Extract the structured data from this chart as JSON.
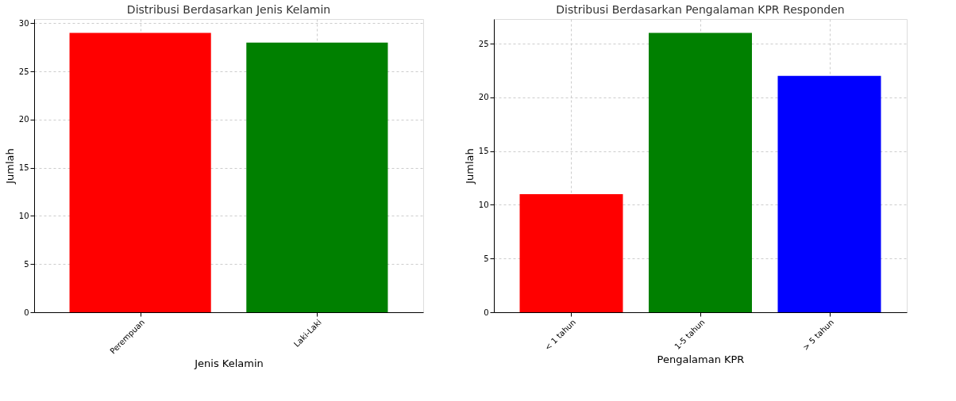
{
  "chart_data": [
    {
      "type": "bar",
      "title": "Distribusi Berdasarkan Jenis Kelamin",
      "xlabel": "Jenis Kelamin",
      "ylabel": "Jumlah",
      "categories": [
        "Perempuan",
        "Laki-Laki"
      ],
      "values": [
        29,
        28
      ],
      "colors": [
        "#ff0000",
        "#008000"
      ],
      "ylim": [
        0,
        30.45
      ],
      "yticks": [
        0,
        5,
        10,
        15,
        20,
        25,
        30
      ],
      "grid": true
    },
    {
      "type": "bar",
      "title": "Distribusi Berdasarkan Pengalaman KPR Responden",
      "xlabel": "Pengalaman KPR",
      "ylabel": "Jumlah",
      "categories": [
        "< 1 tahun",
        "1-5 tahun",
        "> 5 tahun"
      ],
      "values": [
        11,
        26,
        22
      ],
      "colors": [
        "#ff0000",
        "#008000",
        "#0000ff"
      ],
      "ylim": [
        0,
        27.3
      ],
      "yticks": [
        0,
        5,
        10,
        15,
        20,
        25
      ],
      "grid": true
    }
  ]
}
